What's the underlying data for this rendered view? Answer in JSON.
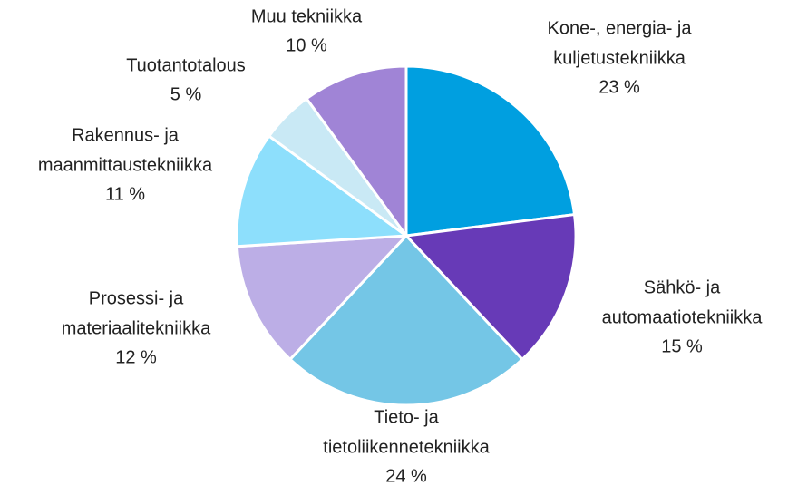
{
  "chart_data": {
    "type": "pie",
    "categories": [
      [
        "Kone-, energia- ja",
        "kuljetustekniikka"
      ],
      [
        "Sähkö- ja",
        "automaatiotekniikka"
      ],
      [
        "Tieto- ja",
        "tietoliikennetekniikka"
      ],
      [
        "Prosessi- ja",
        "materiaalitekniikka"
      ],
      [
        "Rakennus- ja",
        "maanmittaustekniikka"
      ],
      [
        "Tuotantotalous"
      ],
      [
        "Muu tekniikka"
      ]
    ],
    "values": [
      23,
      15,
      24,
      12,
      11,
      5,
      10
    ],
    "value_labels": [
      "23 %",
      "15 %",
      "24 %",
      "12 %",
      "11 %",
      "5 %",
      "10 %"
    ],
    "colors": [
      "#009fe0",
      "#673ab7",
      "#74c6e6",
      "#bcaee6",
      "#8ddffc",
      "#c9e9f5",
      "#a084d6"
    ]
  }
}
